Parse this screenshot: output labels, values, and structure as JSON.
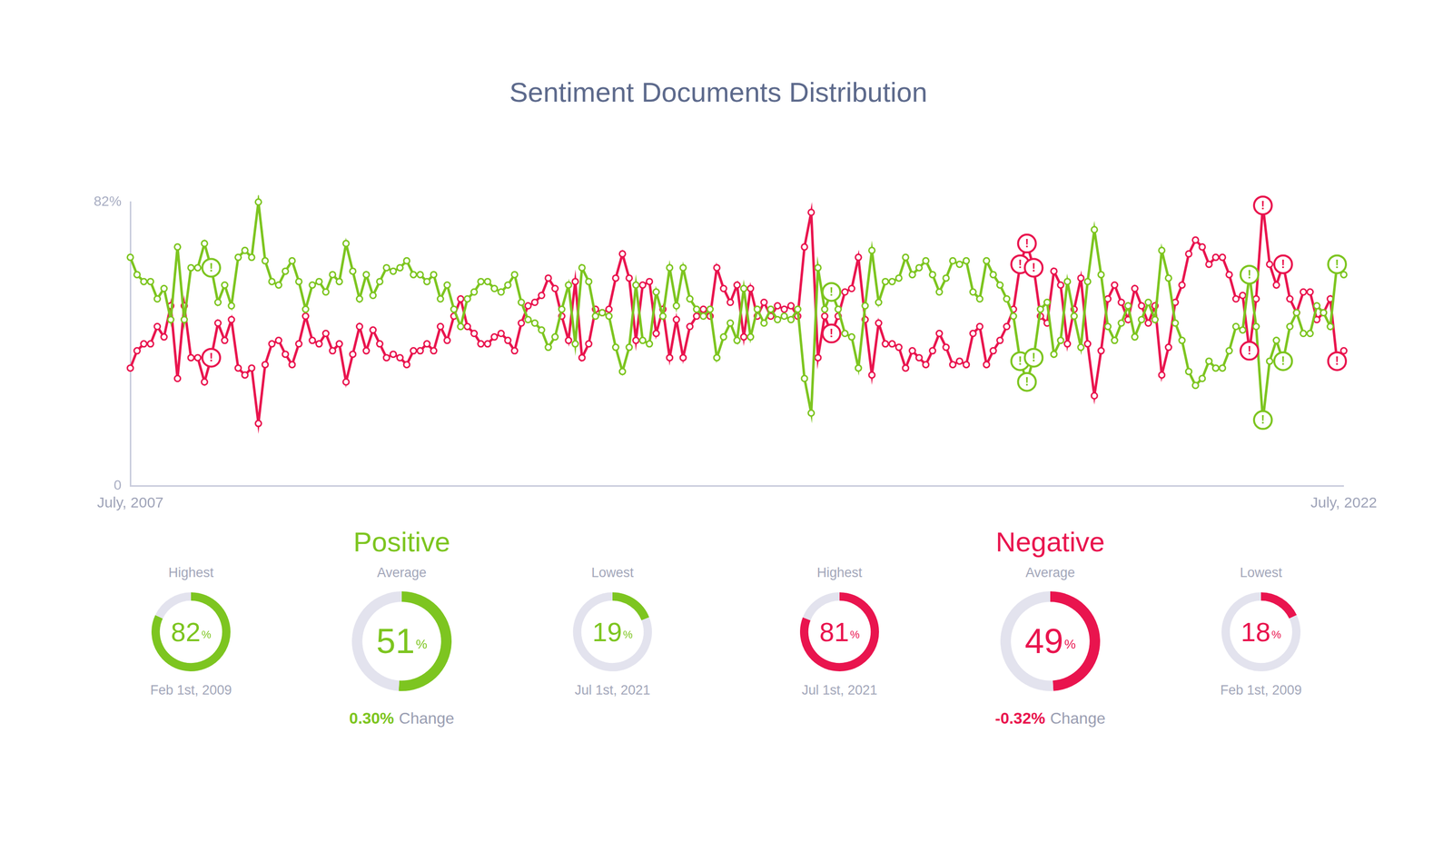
{
  "chart_data": {
    "type": "line",
    "title": "Sentiment Documents Distribution",
    "categories": [
      "July, 2007",
      null,
      null,
      null,
      null,
      null,
      null,
      null,
      null,
      null,
      null,
      null,
      null,
      null,
      null,
      null,
      null,
      null,
      null,
      null,
      null,
      null,
      null,
      null,
      null,
      null,
      null,
      null,
      null,
      null,
      null,
      null,
      null,
      null,
      null,
      null,
      null,
      null,
      null,
      null,
      null,
      null,
      null,
      null,
      null,
      null,
      null,
      null,
      null,
      null,
      null,
      null,
      null,
      null,
      null,
      null,
      null,
      null,
      null,
      null,
      null,
      null,
      null,
      null,
      null,
      null,
      null,
      null,
      null,
      null,
      null,
      null,
      null,
      null,
      null,
      null,
      null,
      null,
      null,
      null,
      null,
      null,
      null,
      null,
      null,
      null,
      null,
      null,
      null,
      null,
      null,
      null,
      null,
      null,
      null,
      null,
      null,
      null,
      null,
      null,
      null,
      null,
      null,
      null,
      null,
      null,
      null,
      null,
      null,
      null,
      null,
      null,
      null,
      null,
      null,
      null,
      null,
      null,
      null,
      null,
      null,
      null,
      null,
      null,
      null,
      null,
      null,
      null,
      null,
      null,
      null,
      null,
      null,
      null,
      null,
      null,
      null,
      null,
      null,
      null,
      null,
      null,
      null,
      null,
      null,
      null,
      null,
      null,
      null,
      null,
      null,
      null,
      null,
      null,
      null,
      null,
      null,
      null,
      null,
      null,
      null,
      null,
      null,
      null,
      null,
      null,
      null,
      null,
      null,
      null,
      null,
      null,
      null,
      null,
      null,
      null,
      null,
      null,
      null,
      null,
      "July, 2022"
    ],
    "series": [
      {
        "name": "Positive",
        "color": "#7dc520",
        "values": [
          66,
          61,
          59,
          59,
          54,
          57,
          48,
          69,
          48,
          63,
          63,
          70,
          63,
          53,
          58,
          52,
          66,
          68,
          66,
          82,
          65,
          59,
          58,
          62,
          65,
          59,
          51,
          58,
          59,
          56,
          61,
          59,
          70,
          62,
          54,
          61,
          55,
          59,
          63,
          62,
          63,
          65,
          61,
          61,
          59,
          61,
          54,
          58,
          51,
          46,
          54,
          56,
          59,
          59,
          57,
          56,
          58,
          61,
          53,
          48,
          47,
          45,
          40,
          43,
          51,
          58,
          41,
          63,
          59,
          49,
          50,
          49,
          40,
          33,
          40,
          58,
          42,
          41,
          56,
          49,
          63,
          52,
          63,
          54,
          51,
          49,
          51,
          37,
          43,
          47,
          42,
          57,
          43,
          51,
          47,
          51,
          48,
          49,
          48,
          51,
          31,
          21,
          63,
          51,
          56,
          51,
          44,
          43,
          34,
          52,
          68,
          53,
          59,
          59,
          60,
          66,
          61,
          63,
          65,
          61,
          56,
          60,
          65,
          64,
          65,
          56,
          54,
          65,
          61,
          58,
          54,
          49,
          36,
          30,
          37,
          51,
          53,
          38,
          42,
          59,
          49,
          40,
          59,
          74,
          61,
          46,
          42,
          47,
          52,
          43,
          48,
          53,
          48,
          68,
          60,
          47,
          42,
          33,
          29,
          31,
          36,
          34,
          34,
          39,
          46,
          45,
          61,
          46,
          19,
          36,
          42,
          36,
          46,
          50,
          44,
          44,
          52,
          50,
          46,
          64,
          61
        ]
      },
      {
        "name": "Negative",
        "color": "#e9144e",
        "values": [
          34,
          39,
          41,
          41,
          46,
          43,
          52,
          31,
          52,
          37,
          37,
          30,
          37,
          47,
          42,
          48,
          34,
          32,
          34,
          18,
          35,
          41,
          42,
          38,
          35,
          41,
          49,
          42,
          41,
          44,
          39,
          41,
          30,
          38,
          46,
          39,
          45,
          41,
          37,
          38,
          37,
          35,
          39,
          39,
          41,
          39,
          46,
          42,
          49,
          54,
          46,
          44,
          41,
          41,
          43,
          44,
          42,
          39,
          47,
          52,
          53,
          55,
          60,
          57,
          49,
          42,
          59,
          37,
          41,
          51,
          50,
          51,
          60,
          67,
          60,
          42,
          58,
          59,
          44,
          51,
          37,
          48,
          37,
          46,
          49,
          51,
          49,
          63,
          57,
          53,
          58,
          43,
          57,
          49,
          53,
          49,
          52,
          51,
          52,
          49,
          69,
          79,
          37,
          49,
          44,
          49,
          56,
          57,
          66,
          48,
          32,
          47,
          41,
          41,
          40,
          34,
          39,
          37,
          35,
          39,
          44,
          40,
          35,
          36,
          35,
          44,
          46,
          35,
          39,
          42,
          46,
          51,
          64,
          70,
          63,
          49,
          47,
          62,
          58,
          41,
          51,
          60,
          41,
          26,
          39,
          54,
          58,
          53,
          48,
          57,
          52,
          47,
          52,
          32,
          40,
          53,
          58,
          67,
          71,
          69,
          64,
          66,
          66,
          61,
          54,
          55,
          39,
          54,
          81,
          64,
          58,
          64,
          54,
          50,
          56,
          56,
          48,
          50,
          54,
          36,
          39
        ]
      }
    ],
    "ylim": [
      0,
      82
    ],
    "yticks": [
      0,
      {
        "value": 82,
        "label": "82%"
      }
    ],
    "grid": false,
    "marker": "circle",
    "annotations": [
      {
        "text": "!",
        "index": 12
      },
      {
        "text": "!",
        "index": 104
      },
      {
        "text": "!",
        "index": 132
      },
      {
        "text": "!",
        "index": 133
      },
      {
        "text": "!",
        "index": 134
      },
      {
        "text": "!",
        "index": 166
      },
      {
        "text": "!",
        "index": 168
      },
      {
        "text": "!",
        "index": 171
      },
      {
        "text": "!",
        "index": 179
      }
    ]
  },
  "summary": [
    {
      "range": [
        0,
        100
      ],
      "stats": [
        {
          "label": "Highest",
          "value": 82,
          "unit": "%",
          "date": "Feb 1st, 2009"
        },
        {
          "label": "Average",
          "value": 51,
          "unit": "%",
          "change": {
            "value": 0.3,
            "label": "0.30%",
            "text": "Change"
          }
        },
        {
          "label": "Lowest",
          "value": 19,
          "unit": "%",
          "date": "Jul 1st, 2021"
        }
      ]
    },
    {
      "range": [
        0,
        100
      ],
      "stats": [
        {
          "label": "Highest",
          "value": 81,
          "unit": "%",
          "date": "Jul 1st, 2021"
        },
        {
          "label": "Average",
          "value": 49,
          "unit": "%",
          "change": {
            "value": -0.32,
            "label": "-0.32%",
            "text": "Change"
          }
        },
        {
          "label": "Lowest",
          "value": 18,
          "unit": "%",
          "date": "Feb 1st, 2009"
        }
      ]
    }
  ]
}
